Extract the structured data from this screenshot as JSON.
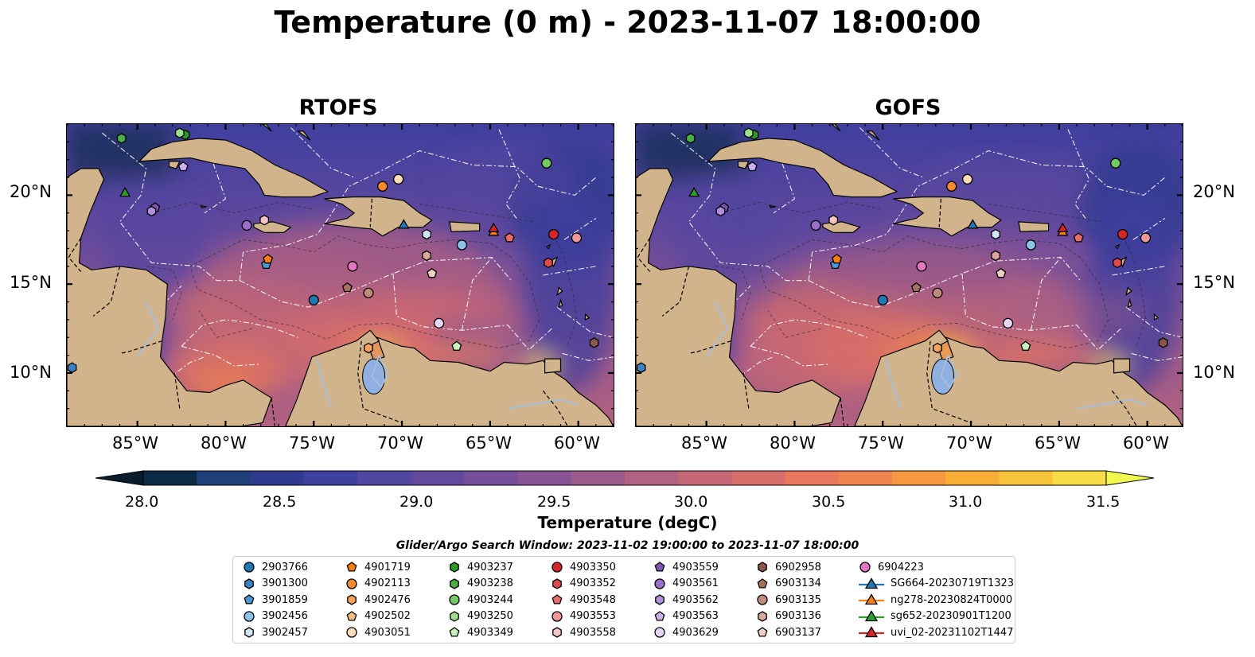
{
  "figure": {
    "title": "Temperature (0 m) - 2023-11-07 18:00:00"
  },
  "panels": [
    {
      "title": "RTOFS"
    },
    {
      "title": "GOFS"
    }
  ],
  "map": {
    "extent": {
      "lon": [
        -89,
        -58
      ],
      "lat": [
        7,
        24
      ]
    },
    "lat_ticks": [
      "20°N",
      "15°N",
      "10°N"
    ],
    "lon_ticks": [
      "85°W",
      "80°W",
      "75°W",
      "70°W",
      "65°W",
      "60°W"
    ],
    "land_color": "#d2b48c",
    "river_color": "#a6bddb"
  },
  "colorbar": {
    "label": "Temperature (degC)",
    "ticks": [
      "28.0",
      "28.5",
      "29.0",
      "29.5",
      "30.0",
      "30.5",
      "31.0",
      "31.5"
    ],
    "range": [
      28.0,
      31.5
    ],
    "colors": [
      "#0b2a45",
      "#1f3f7a",
      "#2f3a8f",
      "#3f3f9e",
      "#5146a0",
      "#62499d",
      "#754e9a",
      "#875394",
      "#9c5a8c",
      "#b16181",
      "#c66776",
      "#d86e69",
      "#e8775c",
      "#f0864f",
      "#f6983f",
      "#f8ad34",
      "#f8c43a",
      "#f6dc47"
    ],
    "under_color": "#081c2c",
    "over_color": "#f1f94f"
  },
  "legend": {
    "title": "Glider/Argo Search Window: 2023-11-02 19:00:00 to 2023-11-07 18:00:00",
    "entries": [
      {
        "label": "2903766",
        "marker": "circle",
        "color": "#1f77b4"
      },
      {
        "label": "3901300",
        "marker": "hexagon",
        "color": "#3b82c4"
      },
      {
        "label": "3901859",
        "marker": "pentagon",
        "color": "#4a9ad6"
      },
      {
        "label": "3902456",
        "marker": "circle",
        "color": "#8cc4ea"
      },
      {
        "label": "3902457",
        "marker": "hexagon",
        "color": "#cfe6f7"
      },
      {
        "label": "4901719",
        "marker": "pentagon",
        "color": "#f47f0e"
      },
      {
        "label": "4902113",
        "marker": "circle",
        "color": "#f68a2a"
      },
      {
        "label": "4902476",
        "marker": "hexagon",
        "color": "#f9a35a"
      },
      {
        "label": "4902502",
        "marker": "pentagon",
        "color": "#fbbd84"
      },
      {
        "label": "4903051",
        "marker": "circle",
        "color": "#fdddb9"
      },
      {
        "label": "4903237",
        "marker": "hexagon",
        "color": "#2a9a2a"
      },
      {
        "label": "4903238",
        "marker": "hexagon",
        "color": "#4aae45"
      },
      {
        "label": "4903244",
        "marker": "circle",
        "color": "#6fcb62"
      },
      {
        "label": "4903250",
        "marker": "hexagon",
        "color": "#9ee08c"
      },
      {
        "label": "4903349",
        "marker": "pentagon",
        "color": "#c8f2bb"
      },
      {
        "label": "4903350",
        "marker": "circle",
        "color": "#d62728"
      },
      {
        "label": "4903352",
        "marker": "hexagon",
        "color": "#e04a4a"
      },
      {
        "label": "4903548",
        "marker": "pentagon",
        "color": "#e86c6c"
      },
      {
        "label": "4903553",
        "marker": "circle",
        "color": "#f09898"
      },
      {
        "label": "4903558",
        "marker": "hexagon",
        "color": "#f7c4c4"
      },
      {
        "label": "4903559",
        "marker": "pentagon",
        "color": "#7f55b0"
      },
      {
        "label": "4903561",
        "marker": "circle",
        "color": "#9a6fca"
      },
      {
        "label": "4903562",
        "marker": "hexagon",
        "color": "#b28fdc"
      },
      {
        "label": "4903563",
        "marker": "pentagon",
        "color": "#cbb1ec"
      },
      {
        "label": "4903629",
        "marker": "circle",
        "color": "#e6d6f8"
      },
      {
        "label": "6902958",
        "marker": "hexagon",
        "color": "#8c564b"
      },
      {
        "label": "6903134",
        "marker": "pentagon",
        "color": "#a56f62"
      },
      {
        "label": "6903135",
        "marker": "circle",
        "color": "#c08a7c"
      },
      {
        "label": "6903136",
        "marker": "hexagon",
        "color": "#d9aa9c"
      },
      {
        "label": "6903137",
        "marker": "pentagon",
        "color": "#f2cfc4"
      },
      {
        "label": "6904223",
        "marker": "circle",
        "color": "#e377c2"
      },
      {
        "label": "SG664-20230719T1323",
        "marker": "triangle-line",
        "color": "#1f77b4"
      },
      {
        "label": "ng278-20230824T0000",
        "marker": "triangle-line",
        "color": "#ff7f0e"
      },
      {
        "label": "sg652-20230901T1200",
        "marker": "triangle-line",
        "color": "#2ca02c"
      },
      {
        "label": "uvi_02-20231102T1447",
        "marker": "triangle-line",
        "color": "#d62728"
      }
    ]
  },
  "observations": [
    {
      "id": "2903766",
      "lon": -75.0,
      "lat": 14.1
    },
    {
      "id": "3901300",
      "lon": -88.7,
      "lat": 10.3
    },
    {
      "id": "3901859",
      "lon": -77.7,
      "lat": 16.1
    },
    {
      "id": "3902456",
      "lon": -66.6,
      "lat": 17.2
    },
    {
      "id": "3902457",
      "lon": -68.6,
      "lat": 17.8
    },
    {
      "id": "4901719",
      "lon": -77.6,
      "lat": 16.4
    },
    {
      "id": "4902113",
      "lon": -71.1,
      "lat": 20.5
    },
    {
      "id": "4902476",
      "lon": -71.9,
      "lat": 11.4
    },
    {
      "id": "4902502",
      "lon": -68.3,
      "lat": 15.6
    },
    {
      "id": "4903051",
      "lon": -70.2,
      "lat": 20.9
    },
    {
      "id": "4903237",
      "lon": -82.3,
      "lat": 23.4
    },
    {
      "id": "4903238",
      "lon": -85.9,
      "lat": 23.2
    },
    {
      "id": "4903244",
      "lon": -61.8,
      "lat": 21.8
    },
    {
      "id": "4903250",
      "lon": -82.6,
      "lat": 23.5
    },
    {
      "id": "4903349",
      "lon": -66.9,
      "lat": 11.5
    },
    {
      "id": "4903350",
      "lon": -61.4,
      "lat": 17.8
    },
    {
      "id": "4903352",
      "lon": -61.7,
      "lat": 16.2
    },
    {
      "id": "4903548",
      "lon": -63.9,
      "lat": 17.6
    },
    {
      "id": "4903553",
      "lon": -60.1,
      "lat": 17.6
    },
    {
      "id": "4903558",
      "lon": -77.8,
      "lat": 18.6
    },
    {
      "id": "4903559",
      "lon": -84.0,
      "lat": 19.3
    },
    {
      "id": "4903561",
      "lon": -78.8,
      "lat": 18.3
    },
    {
      "id": "4903562",
      "lon": -84.2,
      "lat": 19.1
    },
    {
      "id": "4903563",
      "lon": -82.4,
      "lat": 21.6
    },
    {
      "id": "4903629",
      "lon": -67.9,
      "lat": 12.8
    },
    {
      "id": "6902958",
      "lon": -59.1,
      "lat": 11.7
    },
    {
      "id": "6903134",
      "lon": -73.1,
      "lat": 14.8
    },
    {
      "id": "6903135",
      "lon": -71.9,
      "lat": 14.5
    },
    {
      "id": "6903136",
      "lon": -68.6,
      "lat": 16.6
    },
    {
      "id": "6903137",
      "lon": -68.3,
      "lat": 15.6
    },
    {
      "id": "6904223",
      "lon": -72.8,
      "lat": 16.0
    },
    {
      "id": "SG664-20230719T1323",
      "lon": -69.9,
      "lat": 18.3
    },
    {
      "id": "ng278-20230824T0000",
      "lon": -64.8,
      "lat": 17.9
    },
    {
      "id": "sg652-20230901T1200",
      "lon": -85.7,
      "lat": 20.1
    },
    {
      "id": "uvi_02-20231102T1447",
      "lon": -64.8,
      "lat": 18.1
    }
  ]
}
